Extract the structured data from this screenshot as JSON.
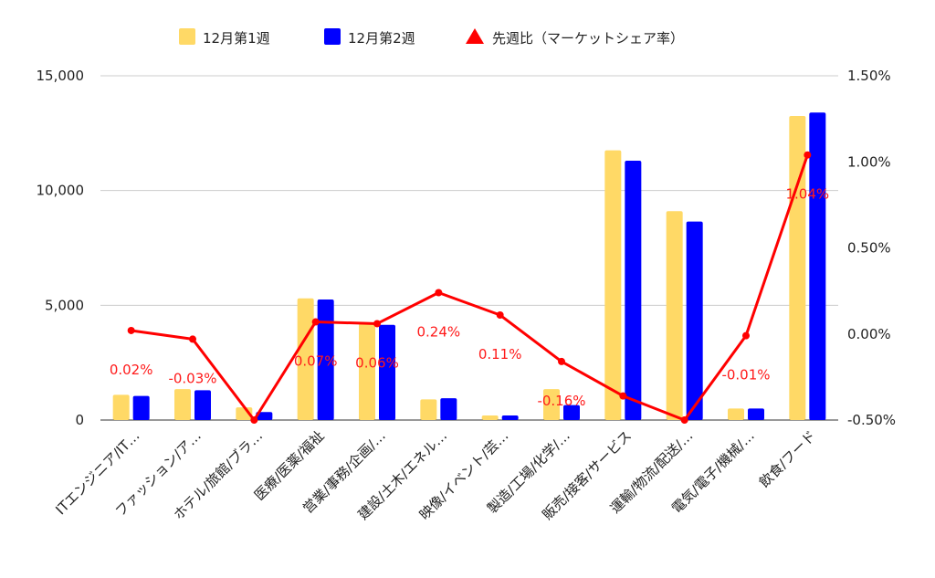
{
  "chart_data": {
    "type": "bar",
    "categories": [
      "ITエンジニア/IT…",
      "ファッション/ア…",
      "ホテル/旅館/ブラ…",
      "医療/医薬/福祉",
      "営業/事務/企画/…",
      "建設/土木/エネル…",
      "映像/イベント/芸…",
      "製造/工場/化学/…",
      "販売/接客/サービス",
      "運輸/物流/配送/…",
      "電気/電子/機械/…",
      "飲食/フード"
    ],
    "series": [
      {
        "name": "12月第1週",
        "axis": "left",
        "kind": "bar",
        "color": "#ffd966",
        "values": [
          1100,
          1350,
          550,
          5300,
          4200,
          900,
          200,
          1350,
          11750,
          9100,
          500,
          13250
        ]
      },
      {
        "name": "12月第2週",
        "axis": "left",
        "kind": "bar",
        "color": "#0000ff",
        "values": [
          1050,
          1300,
          350,
          5250,
          4150,
          950,
          200,
          650,
          11300,
          8650,
          500,
          13400
        ]
      },
      {
        "name": "先週比（マーケットシェア率）",
        "axis": "right",
        "kind": "line",
        "color": "#ff0000",
        "values": [
          0.02,
          -0.03,
          -0.5,
          0.07,
          0.06,
          0.24,
          0.11,
          -0.16,
          -0.36,
          -0.5,
          -0.01,
          1.04
        ],
        "labels": [
          "0.02%",
          "-0.03%",
          "",
          "0.07%",
          "0.06%",
          "0.24%",
          "0.11%",
          "-0.16%",
          "",
          "",
          "-0.01%",
          "1.04%"
        ]
      }
    ],
    "left_axis": {
      "min": 0,
      "max": 15000,
      "ticks": [
        "0",
        "5,000",
        "10,000",
        "15,000"
      ],
      "tick_values": [
        0,
        5000,
        10000,
        15000
      ]
    },
    "right_axis": {
      "min": -0.5,
      "max": 1.5,
      "ticks": [
        "-0.50%",
        "0.00%",
        "0.50%",
        "1.00%",
        "1.50%"
      ],
      "tick_values": [
        -0.5,
        0,
        0.5,
        1.0,
        1.5
      ]
    },
    "grid": true,
    "legend_position": "top"
  }
}
